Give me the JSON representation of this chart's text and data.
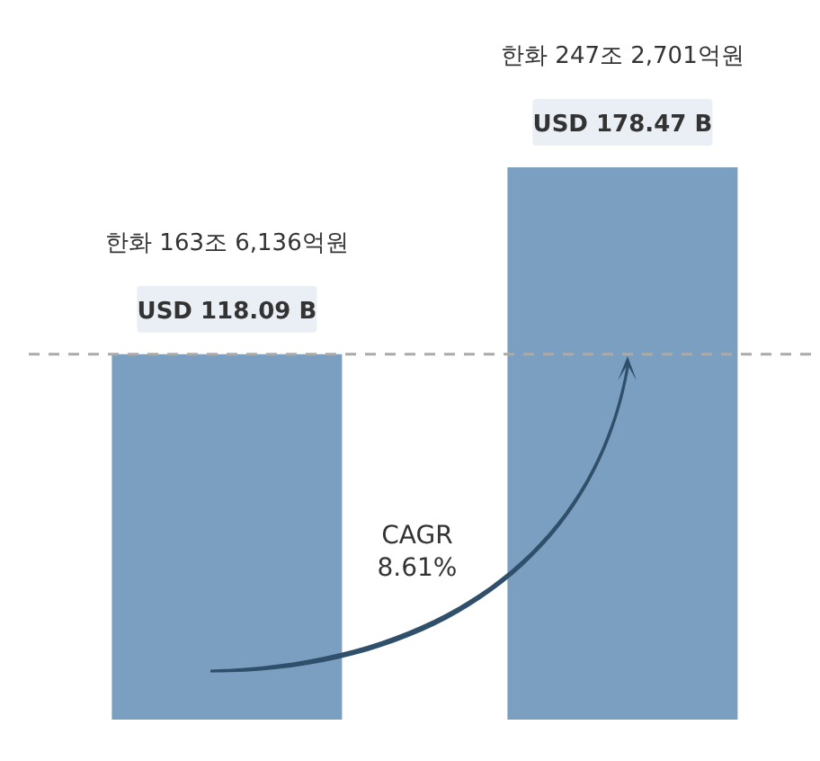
{
  "chart_data": {
    "type": "bar",
    "categories": [
      null,
      null
    ],
    "values": [
      118.09,
      178.47
    ],
    "color": "#7b9fc0",
    "value_labels": [
      "USD 118.09 B",
      "USD 178.47 B"
    ],
    "ylim": [
      0,
      200
    ],
    "ref_lines": [
      {
        "axis": "y",
        "value": 118.09,
        "color": "#aaaaaa",
        "line_style": "dashed"
      }
    ],
    "annotations": [
      "한화 163조 6,136억원",
      "한화 247조 2,701억원",
      "CAGR 8.61%"
    ]
  }
}
